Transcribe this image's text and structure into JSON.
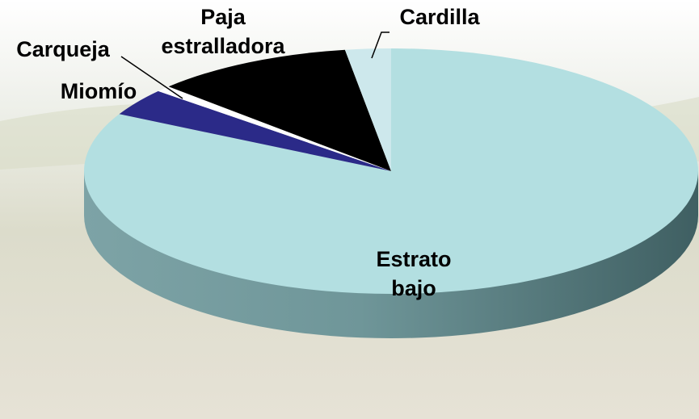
{
  "chart_data": {
    "type": "pie",
    "categories": [
      "Estrato bajo",
      "Miomío",
      "Carqueja",
      "Paja estralladora",
      "Cardilla"
    ],
    "values": [
      82.7,
      3.6,
      0.8,
      10.5,
      2.4
    ],
    "colors": [
      "#b3dfe1",
      "#2b2a88",
      "#ffffff",
      "#000000",
      "#cde8ec"
    ]
  }
}
